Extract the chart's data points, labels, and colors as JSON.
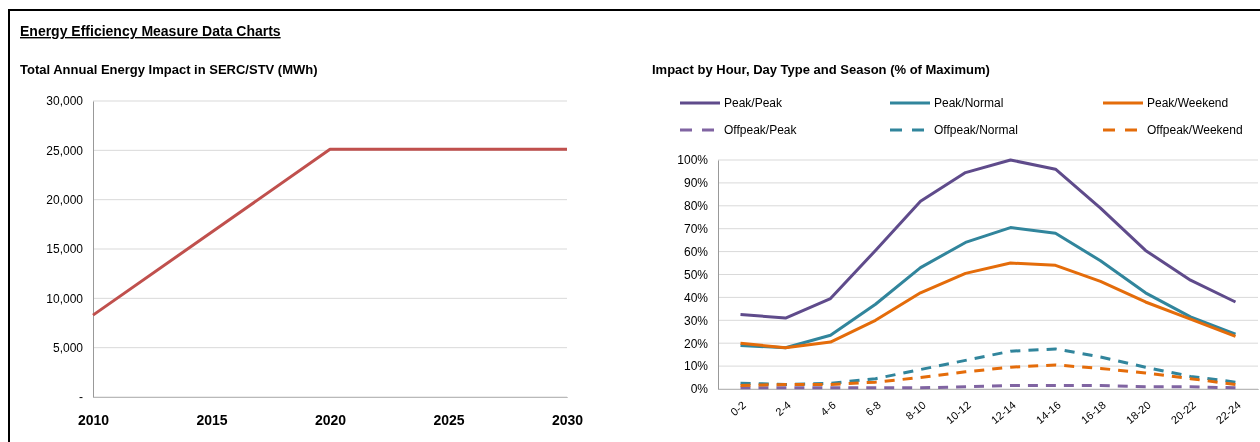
{
  "chart_data": [
    {
      "type": "line",
      "title": "Total Annual Energy Impact  in SERC/STV (MWh)",
      "annotations": [
        "Energy Efficiency Measure Data Charts"
      ],
      "x": [
        2010,
        2020,
        2030
      ],
      "xlim": [
        2010,
        2030
      ],
      "xticks": [
        2010,
        2015,
        2020,
        2025,
        2030
      ],
      "ylim": [
        0,
        30000
      ],
      "yticks": [
        {
          "value": 0,
          "label": "-"
        },
        {
          "value": 5000,
          "label": "5,000"
        },
        {
          "value": 10000,
          "label": "10,000"
        },
        {
          "value": 15000,
          "label": "15,000"
        },
        {
          "value": 20000,
          "label": "20,000"
        },
        {
          "value": 25000,
          "label": "25,000"
        },
        {
          "value": 30000,
          "label": "30,000"
        }
      ],
      "series": [
        {
          "color": "#c0504d",
          "values": [
            8300,
            25100,
            25100
          ]
        }
      ],
      "grid": "y",
      "legend": false,
      "marker": "none"
    },
    {
      "type": "line",
      "title": "Impact by Hour, Day Type and Season (% of Maximum)",
      "categories": [
        "0-2",
        "2-4",
        "4-6",
        "6-8",
        "8-10",
        "10-12",
        "12-14",
        "14-16",
        "16-18",
        "18-20",
        "20-22",
        "22-24"
      ],
      "ylim": [
        0,
        100
      ],
      "yticks": [
        {
          "value": 0,
          "label": "0%"
        },
        {
          "value": 10,
          "label": "10%"
        },
        {
          "value": 20,
          "label": "20%"
        },
        {
          "value": 30,
          "label": "30%"
        },
        {
          "value": 40,
          "label": "40%"
        },
        {
          "value": 50,
          "label": "50%"
        },
        {
          "value": 60,
          "label": "60%"
        },
        {
          "value": 70,
          "label": "70%"
        },
        {
          "value": 80,
          "label": "80%"
        },
        {
          "value": 90,
          "label": "90%"
        },
        {
          "value": 100,
          "label": "100%"
        }
      ],
      "series": [
        {
          "name": "Peak/Peak",
          "color": "#5f4b8b",
          "line_style": "solid",
          "values": [
            32.5,
            31,
            39.5,
            60.5,
            82,
            94.5,
            100,
            96,
            79,
            60.5,
            47.5,
            38
          ]
        },
        {
          "name": "Peak/Normal",
          "color": "#31859c",
          "line_style": "solid",
          "values": [
            19,
            18,
            23.5,
            37,
            53,
            64,
            70.5,
            68,
            56,
            42,
            31.5,
            24
          ]
        },
        {
          "name": "Peak/Weekend",
          "color": "#e46c0a",
          "line_style": "solid",
          "values": [
            20,
            18,
            20.5,
            30,
            42,
            50.5,
            55,
            54,
            47,
            38,
            30.5,
            23
          ]
        },
        {
          "name": "Offpeak/Peak",
          "color": "#8064a2",
          "line_style": "dashed",
          "values": [
            0.5,
            0.5,
            0.5,
            0.5,
            0.5,
            1,
            1.5,
            1.5,
            1.5,
            1,
            1,
            0.5
          ]
        },
        {
          "name": "Offpeak/Normal",
          "color": "#31859c",
          "line_style": "dashed",
          "values": [
            2.5,
            2,
            2.5,
            4.5,
            8.5,
            12.5,
            16.5,
            17.5,
            14,
            9.5,
            5.5,
            3
          ]
        },
        {
          "name": "Offpeak/Weekend",
          "color": "#e46c0a",
          "line_style": "dashed",
          "values": [
            1.5,
            2,
            2,
            3,
            5,
            7.5,
            9.5,
            10.5,
            9,
            7,
            4.5,
            2
          ]
        }
      ],
      "grid": "y",
      "legend": "top",
      "marker": "none"
    }
  ]
}
